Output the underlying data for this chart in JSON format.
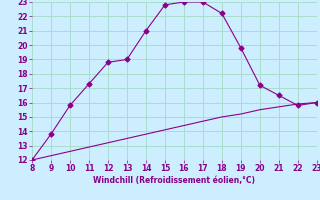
{
  "curve1_x": [
    8,
    9,
    10,
    11,
    12,
    13,
    14,
    15,
    16,
    17,
    18,
    19,
    20,
    21,
    22,
    23
  ],
  "curve1_y": [
    12.0,
    13.8,
    15.8,
    17.3,
    18.8,
    19.0,
    21.0,
    22.8,
    23.0,
    23.0,
    22.2,
    19.8,
    17.2,
    16.5,
    15.8,
    16.0
  ],
  "curve2_x": [
    8,
    9,
    10,
    11,
    12,
    13,
    14,
    15,
    16,
    17,
    18,
    19,
    20,
    21,
    22,
    23
  ],
  "curve2_y": [
    12.0,
    12.3,
    12.6,
    12.9,
    13.2,
    13.5,
    13.8,
    14.1,
    14.4,
    14.7,
    15.0,
    15.2,
    15.5,
    15.7,
    15.9,
    16.0
  ],
  "line_color": "#8B008B",
  "marker": "D",
  "markersize": 2.5,
  "xlim": [
    8,
    23
  ],
  "ylim": [
    12,
    23
  ],
  "xticks": [
    8,
    9,
    10,
    11,
    12,
    13,
    14,
    15,
    16,
    17,
    18,
    19,
    20,
    21,
    22,
    23
  ],
  "yticks": [
    12,
    13,
    14,
    15,
    16,
    17,
    18,
    19,
    20,
    21,
    22,
    23
  ],
  "xlabel": "Windchill (Refroidissement éolien,°C)",
  "bg_color": "#cceeff",
  "grid_color": "#aaddcc",
  "tick_color": "#880088",
  "label_color": "#880088",
  "tick_fontsize": 5.5,
  "xlabel_fontsize": 5.5
}
